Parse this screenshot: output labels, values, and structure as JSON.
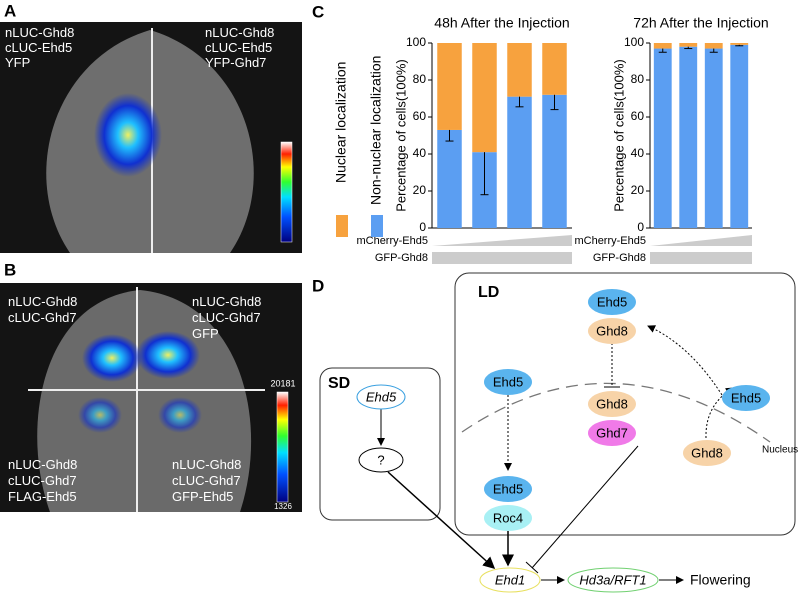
{
  "panel_labels": [
    "A",
    "B",
    "C",
    "D"
  ],
  "panel_a": {
    "labels": [
      [
        "nLUC-Ghd8",
        "cLUC-Ehd5",
        "YFP"
      ],
      [
        "nLUC-Ghd8",
        "cLUC-Ehd5",
        "YFP-Ghd7"
      ]
    ]
  },
  "panel_b": {
    "labels": [
      [
        "nLUC-Ghd8",
        "cLUC-Ghd7"
      ],
      [
        "nLUC-Ghd8",
        "cLUC-Ghd7",
        "GFP"
      ],
      [
        "nLUC-Ghd8",
        "cLUC-Ghd7",
        "FLAG-Ehd5"
      ],
      [
        "nLUC-Ghd8",
        "cLUC-Ghd7",
        "GFP-Ehd5"
      ]
    ],
    "colorbar": [
      "20181",
      "1326"
    ]
  },
  "chart_data": [
    {
      "type": "bar",
      "stacked": true,
      "legend": true,
      "title": "48h After the Injection",
      "ylabel": "Percentage of cells(100%)",
      "categories": [
        null,
        null,
        null,
        null
      ],
      "series": [
        {
          "name": "Non-nuclear localization",
          "color": "#5b9ef2",
          "values": [
            53,
            41,
            71,
            72
          ],
          "errors": [
            6,
            23,
            5.5,
            8
          ]
        },
        {
          "name": "Nuclear localization",
          "color": "#f7a23e",
          "values": [
            47,
            59,
            29,
            28
          ]
        }
      ],
      "ylim": [
        0,
        100
      ],
      "yticks": [
        0,
        20,
        40,
        60,
        80,
        100
      ],
      "x_annotations": [
        "mCherry-Ehd5",
        "GFP-Ghd8"
      ]
    },
    {
      "type": "bar",
      "stacked": true,
      "legend": false,
      "title": "72h After the Injection",
      "ylabel": "Percentage of cells(100%)",
      "categories": [
        null,
        null,
        null,
        null
      ],
      "series": [
        {
          "color": "#5b9ef2",
          "values": [
            97,
            98,
            97,
            99
          ],
          "errors": [
            2,
            1,
            2,
            0.5
          ]
        },
        {
          "color": "#f7a23e",
          "values": [
            3,
            2,
            3,
            1
          ]
        }
      ],
      "ylim": [
        0,
        100
      ],
      "yticks": [
        0,
        20,
        40,
        60,
        80,
        100
      ],
      "x_annotations": [
        "mCherry-Ehd5",
        "GFP-Ghd8"
      ]
    }
  ],
  "panel_d": {
    "ld": "LD",
    "sd": "SD",
    "nucleus": "Nucleus",
    "nodes": [
      "Ehd5",
      "?",
      "Ehd5",
      "Ghd8",
      "Ghd8",
      "Ghd7",
      "Ehd5",
      "Ehd5",
      "Roc4",
      "Ehd5",
      "Ghd8",
      "Ehd1",
      "Hd3a/RFT1",
      "Flowering"
    ]
  }
}
